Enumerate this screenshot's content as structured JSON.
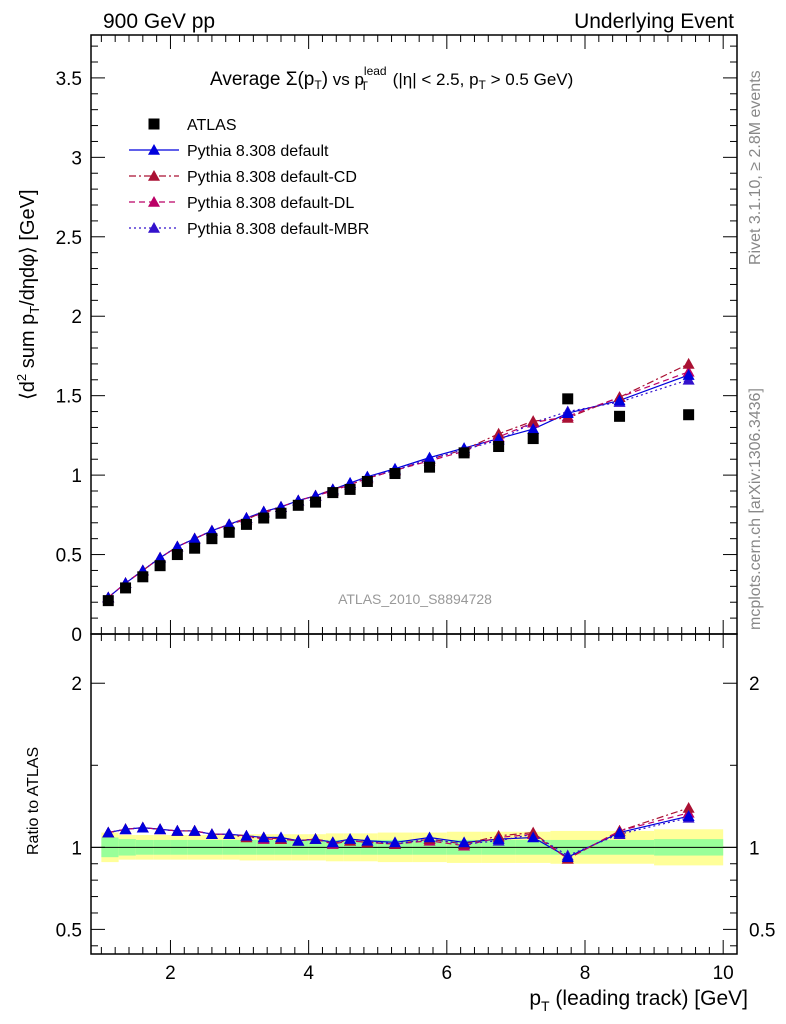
{
  "header": {
    "left": "900 GeV pp",
    "right": "Underlying Event"
  },
  "side_labels": {
    "rivet": "Rivet 3.1.10, ≥ 2.8M events",
    "mcplots": "mcplots.cern.ch [arXiv:1306.3436]"
  },
  "analysis_tag": "ATLAS_2010_S8894728",
  "colors": {
    "data": "#000000",
    "default": "#0000dd",
    "cd": "#aa1133",
    "dl": "#bb0066",
    "mbr": "#3311cc",
    "band_inner": "#99ff99",
    "band_outer": "#ffff99"
  },
  "chart_data": [
    {
      "type": "scatter",
      "title": "Average Σ(pT) vs pT lead (|η| < 2.5, pT > 0.5 GeV)",
      "title_parts": {
        "prefix": "Average ",
        "sigma": "Σ(p",
        "sub_t": "T",
        "close": ")",
        "vs": " vs p",
        "sup_lead": "lead",
        "sub_t2": "T",
        "range": " (|η| < 2.5, p",
        "sub_t3": "T",
        "tail": " > 0.5 GeV)"
      },
      "xlabel": "pT (leading track) [GeV]",
      "xlabel_parts": {
        "p": "p",
        "sub": "T",
        "rest": " (leading track) [GeV]"
      },
      "ylabel": "⟨d² sum pT/dηdφ⟩ [GeV]",
      "ylabel_parts": {
        "a": "⟨d",
        "sup": "2",
        "b": " sum p",
        "sub": "T",
        "c": "/dηdφ⟩ [GeV]"
      },
      "xlim": [
        0.85,
        10.2
      ],
      "ylim": [
        0,
        3.77
      ],
      "x_ticks": [
        "2",
        "4",
        "6",
        "8",
        "10"
      ],
      "y_ticks": [
        "0",
        "0.5",
        "1",
        "1.5",
        "2",
        "2.5",
        "3",
        "3.5"
      ],
      "legend_position": "top-left",
      "x": [
        1.1,
        1.35,
        1.6,
        1.85,
        2.1,
        2.35,
        2.6,
        2.85,
        3.1,
        3.35,
        3.6,
        3.85,
        4.1,
        4.35,
        4.6,
        4.85,
        5.25,
        5.75,
        6.25,
        6.75,
        7.25,
        7.75,
        8.5,
        9.5
      ],
      "series": [
        {
          "name": "ATLAS",
          "marker": "square",
          "values": [
            0.21,
            0.29,
            0.36,
            0.43,
            0.5,
            0.54,
            0.6,
            0.64,
            0.69,
            0.73,
            0.76,
            0.81,
            0.83,
            0.89,
            0.91,
            0.96,
            1.01,
            1.05,
            1.14,
            1.18,
            1.23,
            1.48,
            1.37,
            1.38
          ]
        },
        {
          "name": "Pythia 8.308 default",
          "marker": "triangle",
          "line": "solid",
          "values": [
            0.23,
            0.32,
            0.4,
            0.48,
            0.55,
            0.6,
            0.65,
            0.69,
            0.73,
            0.77,
            0.8,
            0.84,
            0.87,
            0.91,
            0.95,
            0.99,
            1.04,
            1.11,
            1.17,
            1.23,
            1.29,
            1.39,
            1.47,
            1.63
          ]
        },
        {
          "name": "Pythia 8.308 default-CD",
          "marker": "triangle",
          "line": "dash-dot",
          "values": [
            0.23,
            0.32,
            0.4,
            0.48,
            0.55,
            0.6,
            0.65,
            0.69,
            0.72,
            0.77,
            0.8,
            0.84,
            0.87,
            0.91,
            0.94,
            0.98,
            1.03,
            1.1,
            1.16,
            1.26,
            1.34,
            1.36,
            1.49,
            1.7
          ]
        },
        {
          "name": "Pythia 8.308 default-DL",
          "marker": "triangle",
          "line": "dashed",
          "values": [
            0.23,
            0.32,
            0.4,
            0.48,
            0.55,
            0.6,
            0.65,
            0.69,
            0.73,
            0.76,
            0.8,
            0.84,
            0.87,
            0.9,
            0.94,
            0.98,
            1.03,
            1.09,
            1.15,
            1.24,
            1.33,
            1.37,
            1.49,
            1.65
          ]
        },
        {
          "name": "Pythia 8.308 default-MBR",
          "marker": "triangle",
          "line": "dotted",
          "values": [
            0.23,
            0.32,
            0.4,
            0.48,
            0.55,
            0.6,
            0.65,
            0.69,
            0.73,
            0.77,
            0.8,
            0.84,
            0.87,
            0.91,
            0.95,
            0.99,
            1.03,
            1.1,
            1.16,
            1.22,
            1.33,
            1.4,
            1.46,
            1.6
          ]
        }
      ]
    },
    {
      "type": "scatter",
      "title": "",
      "xlabel": "pT (leading track) [GeV]",
      "ylabel": "Ratio to ATLAS",
      "xlim": [
        0.85,
        10.2
      ],
      "ylim": [
        0.35,
        2.3
      ],
      "y_ticks": [
        "0.5",
        "1",
        "2"
      ],
      "x": [
        1.1,
        1.35,
        1.6,
        1.85,
        2.1,
        2.35,
        2.6,
        2.85,
        3.1,
        3.35,
        3.6,
        3.85,
        4.1,
        4.35,
        4.6,
        4.85,
        5.25,
        5.75,
        6.25,
        6.75,
        7.25,
        7.75,
        8.5,
        9.5
      ],
      "band_edges": [
        1.0,
        1.25,
        1.5,
        1.75,
        2.0,
        2.25,
        2.5,
        2.75,
        3.0,
        3.25,
        3.5,
        3.75,
        4.0,
        4.25,
        4.5,
        4.75,
        5.0,
        5.5,
        6.0,
        6.5,
        7.0,
        7.5,
        8.0,
        9.0,
        10.0
      ],
      "band_inner": [
        0.06,
        0.05,
        0.045,
        0.045,
        0.045,
        0.045,
        0.045,
        0.045,
        0.045,
        0.045,
        0.045,
        0.045,
        0.045,
        0.045,
        0.045,
        0.045,
        0.045,
        0.045,
        0.045,
        0.045,
        0.045,
        0.045,
        0.045,
        0.05
      ],
      "band_outer": [
        0.09,
        0.075,
        0.075,
        0.075,
        0.075,
        0.075,
        0.075,
        0.075,
        0.08,
        0.08,
        0.08,
        0.08,
        0.08,
        0.085,
        0.085,
        0.085,
        0.09,
        0.09,
        0.095,
        0.095,
        0.095,
        0.1,
        0.1,
        0.11
      ],
      "series": [
        {
          "name": "Pythia 8.308 default",
          "values": [
            1.09,
            1.11,
            1.12,
            1.11,
            1.1,
            1.1,
            1.08,
            1.08,
            1.07,
            1.06,
            1.06,
            1.04,
            1.05,
            1.03,
            1.05,
            1.04,
            1.03,
            1.06,
            1.03,
            1.05,
            1.06,
            0.94,
            1.09,
            1.19
          ]
        },
        {
          "name": "Pythia 8.308 default-CD",
          "values": [
            1.09,
            1.11,
            1.12,
            1.11,
            1.1,
            1.1,
            1.08,
            1.08,
            1.06,
            1.06,
            1.05,
            1.04,
            1.05,
            1.03,
            1.04,
            1.03,
            1.02,
            1.05,
            1.02,
            1.07,
            1.09,
            0.93,
            1.1,
            1.24
          ]
        },
        {
          "name": "Pythia 8.308 default-DL",
          "values": [
            1.09,
            1.11,
            1.12,
            1.11,
            1.1,
            1.1,
            1.08,
            1.08,
            1.07,
            1.05,
            1.05,
            1.04,
            1.05,
            1.02,
            1.04,
            1.03,
            1.02,
            1.04,
            1.01,
            1.06,
            1.08,
            0.93,
            1.1,
            1.21
          ]
        },
        {
          "name": "Pythia 8.308 default-MBR",
          "values": [
            1.09,
            1.11,
            1.12,
            1.11,
            1.1,
            1.1,
            1.08,
            1.08,
            1.07,
            1.06,
            1.06,
            1.04,
            1.05,
            1.03,
            1.05,
            1.04,
            1.02,
            1.05,
            1.02,
            1.04,
            1.08,
            0.95,
            1.08,
            1.18
          ]
        }
      ]
    }
  ]
}
